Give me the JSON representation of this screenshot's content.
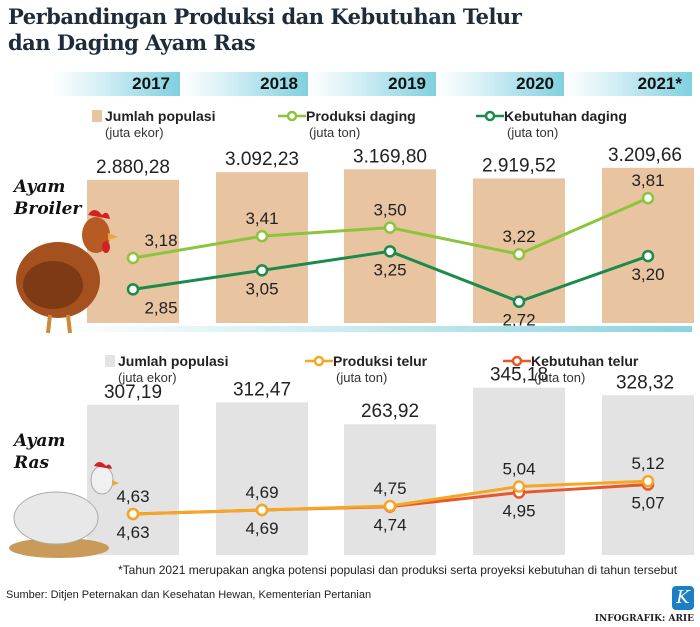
{
  "title_line1": "Perbandingan Produksi dan Kebutuhan Telur",
  "title_line2": "dan Daging Ayam Ras",
  "years": [
    "2017",
    "2018",
    "2019",
    "2020",
    "2021*"
  ],
  "colors": {
    "population_broiler": "#e8c4a0",
    "population_ras": "#e3e3e3",
    "produksi_daging": "#8cc43c",
    "kebutuhan_daging": "#1b8a4a",
    "produksi_telur": "#f5a623",
    "kebutuhan_telur": "#e8572a",
    "year_bar": "#7fd0df"
  },
  "chart_data": [
    {
      "type": "bar+line",
      "section_label": [
        "Ayam",
        "Broiler"
      ],
      "categories": [
        "2017",
        "2018",
        "2019",
        "2020",
        "2021*"
      ],
      "legend": [
        {
          "name": "Jumlah populasi",
          "unit": "(juta ekor)",
          "mark": "bar"
        },
        {
          "name": "Produksi daging",
          "unit": "(juta ton)",
          "mark": "line"
        },
        {
          "name": "Kebutuhan daging",
          "unit": "(juta ton)",
          "mark": "line"
        }
      ],
      "population": {
        "values": [
          2880.28,
          3092.23,
          3169.8,
          2919.52,
          3209.66
        ],
        "labels": [
          "2.880,28",
          "3.092,23",
          "3.169,80",
          "2.919,52",
          "3.209,66"
        ]
      },
      "produksi": {
        "values": [
          3.18,
          3.41,
          3.5,
          3.22,
          3.81
        ],
        "labels": [
          "3,18",
          "3,41",
          "3,50",
          "3,22",
          "3,81"
        ]
      },
      "kebutuhan": {
        "values": [
          2.85,
          3.05,
          3.25,
          2.72,
          3.2
        ],
        "labels": [
          "2,85",
          "3,05",
          "3,25",
          "2,72",
          "3,20"
        ]
      }
    },
    {
      "type": "bar+line",
      "section_label": [
        "Ayam",
        "Ras"
      ],
      "categories": [
        "2017",
        "2018",
        "2019",
        "2020",
        "2021*"
      ],
      "legend": [
        {
          "name": "Jumlah populasi",
          "unit": "(juta ekor)",
          "mark": "bar"
        },
        {
          "name": "Produksi telur",
          "unit": "(juta ton)",
          "mark": "line"
        },
        {
          "name": "Kebutuhan telur",
          "unit": "(juta ton)",
          "mark": "line"
        }
      ],
      "population": {
        "values": [
          307.19,
          312.47,
          263.92,
          345.18,
          328.32
        ],
        "labels": [
          "307,19",
          "312,47",
          "263,92",
          "345,18",
          "328,32"
        ]
      },
      "produksi": {
        "values": [
          4.63,
          4.69,
          4.75,
          5.04,
          5.12
        ],
        "labels": [
          "4,63",
          "4,69",
          "4,75",
          "5,04",
          "5,12"
        ]
      },
      "kebutuhan": {
        "values": [
          4.63,
          4.69,
          4.74,
          4.95,
          5.07
        ],
        "labels": [
          "4,63",
          "4,69",
          "4,74",
          "4,95",
          "5,07"
        ]
      }
    }
  ],
  "footnote": "*Tahun 2021 merupakan angka potensi populasi dan produksi serta proyeksi kebutuhan di tahun tersebut",
  "source": "Sumber: Ditjen Peternakan dan Kesehatan Hewan, Kementerian Pertanian",
  "logo_letter": "K",
  "credit": "INFOGRAFIK: ARIE"
}
